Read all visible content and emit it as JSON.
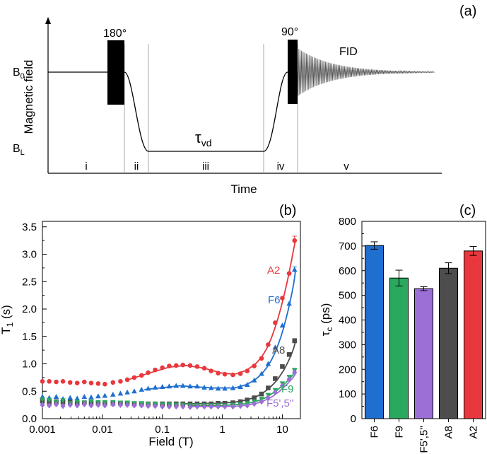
{
  "panels": {
    "a": {
      "label": "(a)",
      "ylabel": "Magnetic field",
      "xlabel": "Time",
      "b0": "B",
      "b0_sub": "0",
      "bl": "B",
      "bl_sub": "L",
      "pulse1": "180°",
      "pulse2": "90°",
      "fid": "FID",
      "tau": "τ",
      "tau_sub": "vd",
      "phases": [
        "i",
        "ii",
        "iii",
        "iv",
        "v"
      ]
    },
    "b": {
      "label": "(b)"
    },
    "c": {
      "label": "(c)"
    }
  },
  "chart_data": [
    {
      "type": "scatter",
      "panel": "b",
      "title": "",
      "xlabel": "Field (T)",
      "ylabel": "T",
      "ylabel_sub": "1",
      "ylabel_unit": " (s)",
      "xscale": "log",
      "xlim": [
        0.001,
        20
      ],
      "ylim": [
        0,
        3.6
      ],
      "xticks": [
        0.001,
        0.01,
        0.1,
        1,
        10
      ],
      "xtick_labels": [
        "0.001",
        "0.01",
        "0.1",
        "1",
        "10"
      ],
      "yticks": [
        0,
        0.5,
        1.0,
        1.5,
        2.0,
        2.5,
        3.0,
        3.5
      ],
      "ytick_labels": [
        "0.0",
        "0.5",
        "1.0",
        "1.5",
        "2.0",
        "2.5",
        "3.0",
        "3.5"
      ],
      "series": [
        {
          "name": "A2",
          "color": "#e8383d",
          "marker": "circle",
          "x": [
            0.001,
            0.0013,
            0.0017,
            0.0022,
            0.0029,
            0.0038,
            0.005,
            0.0065,
            0.0085,
            0.011,
            0.015,
            0.02,
            0.026,
            0.034,
            0.045,
            0.058,
            0.076,
            0.1,
            0.13,
            0.17,
            0.22,
            0.29,
            0.38,
            0.5,
            0.65,
            0.85,
            1.1,
            1.5,
            2.0,
            2.6,
            3.4,
            4.5,
            5.8,
            7.6,
            10,
            13,
            16
          ],
          "y": [
            0.68,
            0.68,
            0.67,
            0.68,
            0.66,
            0.65,
            0.67,
            0.65,
            0.64,
            0.63,
            0.66,
            0.68,
            0.71,
            0.75,
            0.79,
            0.84,
            0.89,
            0.93,
            0.96,
            0.97,
            0.98,
            0.97,
            0.95,
            0.92,
            0.87,
            0.83,
            0.81,
            0.8,
            0.82,
            0.87,
            0.96,
            1.1,
            1.35,
            1.75,
            2.2,
            2.65,
            3.25
          ],
          "fit_x": [
            0.025,
            0.06,
            0.13,
            0.25,
            0.5,
            1,
            1.6,
            2.5,
            3.5,
            4.5,
            5.5,
            6.5,
            7.5,
            8.5,
            9.5,
            10.5,
            11.5,
            12.5,
            13.5,
            14.5,
            15.5,
            16.5
          ],
          "fit_y": [
            0.7,
            0.83,
            0.94,
            0.97,
            0.92,
            0.83,
            0.81,
            0.88,
            0.99,
            1.12,
            1.28,
            1.46,
            1.65,
            1.84,
            2.03,
            2.22,
            2.4,
            2.58,
            2.76,
            2.93,
            3.1,
            3.25
          ],
          "error_last": 0.08
        },
        {
          "name": "F6",
          "color": "#1e6fd0",
          "marker": "triangle",
          "x": [
            0.001,
            0.0013,
            0.0017,
            0.0022,
            0.0029,
            0.0038,
            0.005,
            0.0065,
            0.0085,
            0.011,
            0.015,
            0.02,
            0.026,
            0.034,
            0.045,
            0.058,
            0.076,
            0.1,
            0.13,
            0.17,
            0.22,
            0.29,
            0.38,
            0.5,
            0.65,
            0.85,
            1.1,
            1.5,
            2.0,
            2.6,
            3.4,
            4.5,
            5.8,
            7.6,
            10,
            13,
            16
          ],
          "y": [
            0.4,
            0.38,
            0.4,
            0.36,
            0.38,
            0.37,
            0.4,
            0.39,
            0.41,
            0.42,
            0.44,
            0.46,
            0.48,
            0.5,
            0.53,
            0.55,
            0.57,
            0.58,
            0.59,
            0.6,
            0.6,
            0.59,
            0.59,
            0.57,
            0.56,
            0.55,
            0.55,
            0.56,
            0.58,
            0.62,
            0.7,
            0.82,
            1.0,
            1.3,
            1.7,
            2.1,
            2.72
          ],
          "fit_x": [
            0.05,
            0.2,
            0.7,
            1.6,
            2.5,
            3.5,
            4.5,
            5.5,
            6.5,
            7.5,
            8.5,
            9.5,
            10.5,
            11.5,
            12.5,
            13.5,
            14.5,
            15.5,
            16.5
          ],
          "fit_y": [
            0.53,
            0.6,
            0.56,
            0.56,
            0.62,
            0.71,
            0.81,
            0.93,
            1.06,
            1.2,
            1.35,
            1.5,
            1.66,
            1.82,
            1.98,
            2.14,
            2.3,
            2.47,
            2.68
          ],
          "error_last": 0.05
        },
        {
          "name": "A8",
          "color": "#4d4d4d",
          "marker": "square",
          "x": [
            0.001,
            0.0013,
            0.0017,
            0.0022,
            0.0029,
            0.0038,
            0.005,
            0.0065,
            0.0085,
            0.011,
            0.015,
            0.02,
            0.026,
            0.034,
            0.045,
            0.058,
            0.076,
            0.1,
            0.13,
            0.17,
            0.22,
            0.29,
            0.38,
            0.5,
            0.65,
            0.85,
            1.1,
            1.5,
            2.0,
            2.6,
            3.4,
            4.5,
            5.8,
            7.6,
            10,
            13,
            16
          ],
          "y": [
            0.32,
            0.3,
            0.31,
            0.3,
            0.3,
            0.28,
            0.29,
            0.29,
            0.28,
            0.28,
            0.28,
            0.28,
            0.28,
            0.27,
            0.27,
            0.27,
            0.27,
            0.27,
            0.27,
            0.27,
            0.27,
            0.27,
            0.27,
            0.27,
            0.27,
            0.28,
            0.28,
            0.29,
            0.31,
            0.34,
            0.38,
            0.45,
            0.56,
            0.73,
            0.95,
            1.17,
            1.42
          ],
          "fit_x": [
            0.2,
            0.8,
            1.6,
            2.5,
            3.5,
            4.5,
            5.5,
            6.5,
            7.5,
            8.5,
            9.5,
            10.5,
            11.5,
            12.5,
            13.5,
            14.5,
            15.5,
            16.5
          ],
          "fit_y": [
            0.27,
            0.28,
            0.3,
            0.34,
            0.39,
            0.45,
            0.52,
            0.59,
            0.66,
            0.73,
            0.81,
            0.88,
            0.96,
            1.04,
            1.12,
            1.2,
            1.29,
            1.4
          ],
          "error_last": 0.04
        },
        {
          "name": "F9",
          "color": "#2aa85e",
          "marker": "triangle-down",
          "x": [
            0.001,
            0.0013,
            0.0017,
            0.0022,
            0.0029,
            0.0038,
            0.005,
            0.0065,
            0.0085,
            0.011,
            0.015,
            0.02,
            0.026,
            0.034,
            0.045,
            0.058,
            0.076,
            0.1,
            0.13,
            0.17,
            0.22,
            0.29,
            0.38,
            0.5,
            0.65,
            0.85,
            1.1,
            1.5,
            2.0,
            2.6,
            3.4,
            4.5,
            5.8,
            7.6,
            10,
            13,
            16
          ],
          "y": [
            0.35,
            0.34,
            0.3,
            0.33,
            0.28,
            0.31,
            0.29,
            0.31,
            0.3,
            0.3,
            0.3,
            0.29,
            0.29,
            0.28,
            0.28,
            0.27,
            0.27,
            0.26,
            0.26,
            0.25,
            0.25,
            0.24,
            0.24,
            0.24,
            0.24,
            0.24,
            0.24,
            0.25,
            0.26,
            0.28,
            0.31,
            0.36,
            0.43,
            0.52,
            0.64,
            0.76,
            0.88
          ],
          "fit_x": [
            0.3,
            1,
            2,
            3,
            4,
            5,
            6,
            7,
            8,
            9,
            10,
            11,
            12,
            13,
            14,
            15,
            16.5
          ],
          "fit_y": [
            0.24,
            0.24,
            0.26,
            0.29,
            0.33,
            0.37,
            0.42,
            0.47,
            0.51,
            0.56,
            0.6,
            0.64,
            0.68,
            0.72,
            0.76,
            0.8,
            0.86
          ],
          "error_last": 0.04
        },
        {
          "name": "F5',5''",
          "color": "#9b6fd6",
          "marker": "diamond",
          "x": [
            0.001,
            0.0013,
            0.0017,
            0.0022,
            0.0029,
            0.0038,
            0.005,
            0.0065,
            0.0085,
            0.011,
            0.015,
            0.02,
            0.026,
            0.034,
            0.045,
            0.058,
            0.076,
            0.1,
            0.13,
            0.17,
            0.22,
            0.29,
            0.38,
            0.5,
            0.65,
            0.85,
            1.1,
            1.5,
            2.0,
            2.6,
            3.4,
            4.5,
            5.8,
            7.6,
            10,
            13,
            16
          ],
          "y": [
            0.25,
            0.24,
            0.26,
            0.23,
            0.25,
            0.24,
            0.26,
            0.24,
            0.25,
            0.24,
            0.26,
            0.25,
            0.25,
            0.24,
            0.24,
            0.23,
            0.23,
            0.22,
            0.22,
            0.22,
            0.22,
            0.21,
            0.22,
            0.22,
            0.22,
            0.22,
            0.22,
            0.22,
            0.23,
            0.24,
            0.27,
            0.31,
            0.38,
            0.48,
            0.6,
            0.72,
            0.84
          ],
          "fit_x": [
            0.3,
            1,
            2,
            3,
            4,
            5,
            6,
            7,
            8,
            9,
            10,
            11,
            12,
            13,
            14,
            15,
            16.5
          ],
          "fit_y": [
            0.22,
            0.22,
            0.23,
            0.26,
            0.29,
            0.33,
            0.37,
            0.41,
            0.46,
            0.5,
            0.55,
            0.59,
            0.63,
            0.67,
            0.71,
            0.75,
            0.81
          ],
          "error_last": 0.03
        }
      ]
    },
    {
      "type": "bar",
      "panel": "c",
      "title": "",
      "xlabel": "",
      "ylabel": "τ",
      "ylabel_sub": "c",
      "ylabel_unit": " (ps)",
      "ylim": [
        0,
        800
      ],
      "yticks": [
        0,
        100,
        200,
        300,
        400,
        500,
        600,
        700,
        800
      ],
      "categories": [
        "F6",
        "F9",
        "F5',5''",
        "A8",
        "A2"
      ],
      "values": [
        702,
        570,
        527,
        610,
        680
      ],
      "errors": [
        15,
        32,
        8,
        22,
        18
      ],
      "colors": [
        "#1e6fd0",
        "#2aa85e",
        "#9b6fd6",
        "#4d4d4d",
        "#e8383d"
      ]
    }
  ]
}
